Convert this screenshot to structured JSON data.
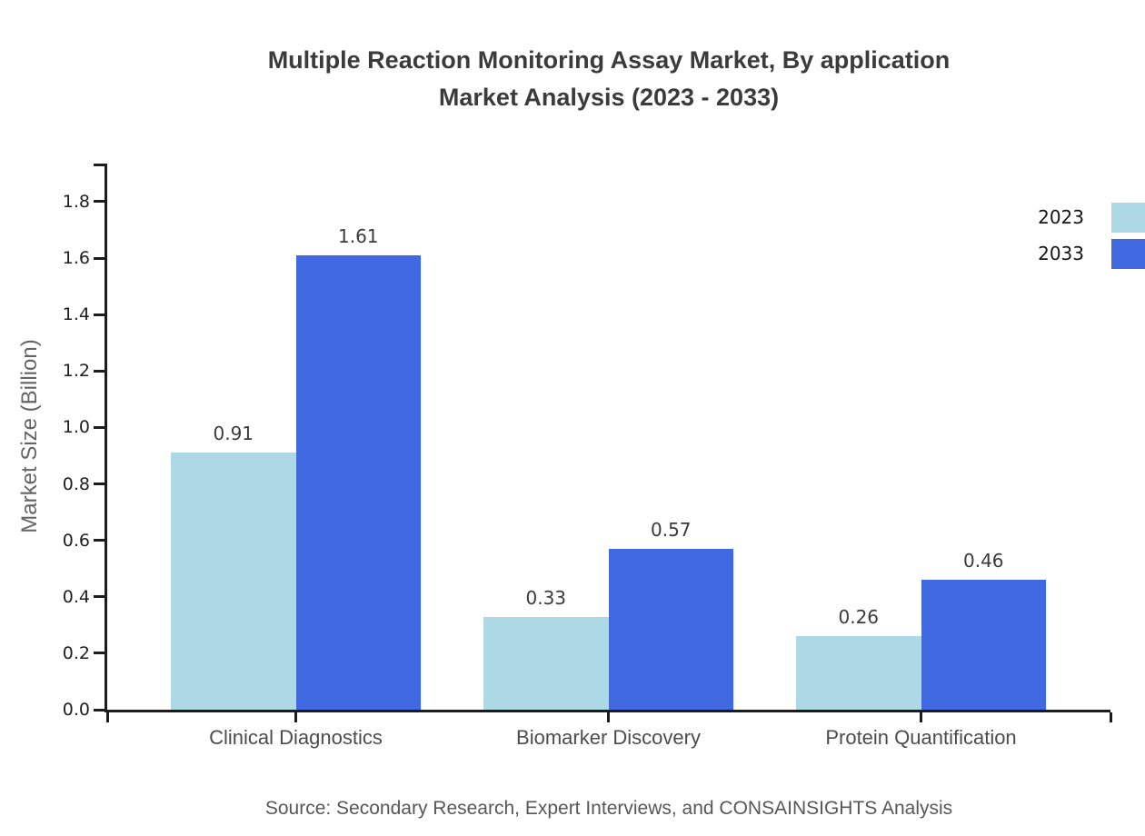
{
  "title_line1": "Multiple Reaction Monitoring Assay Market, By application",
  "title_line2": "Market Analysis (2023 - 2033)",
  "source_note": "Source: Secondary Research, Expert Interviews, and CONSAINSIGHTS Analysis",
  "chart_data": {
    "type": "bar",
    "title": "Multiple Reaction Monitoring Assay Market, By application Market Analysis (2023 - 2033)",
    "ylabel": "Market Size (Billion)",
    "categories": [
      "Clinical Diagnostics",
      "Biomarker Discovery",
      "Protein Quantification"
    ],
    "series": [
      {
        "name": "2023",
        "color": "#ADD8E6",
        "values": [
          0.91,
          0.33,
          0.26
        ]
      },
      {
        "name": "2033",
        "color": "#4169E1",
        "values": [
          1.61,
          0.57,
          0.46
        ]
      }
    ],
    "ylim": [
      0,
      1.935
    ],
    "yticks": [
      0.0,
      0.2,
      0.4,
      0.6,
      0.8,
      1.0,
      1.2,
      1.4,
      1.6,
      1.8
    ],
    "grid": false,
    "legend_position": "upper right",
    "value_labels": true,
    "axis_color": "#1c1c1c"
  }
}
